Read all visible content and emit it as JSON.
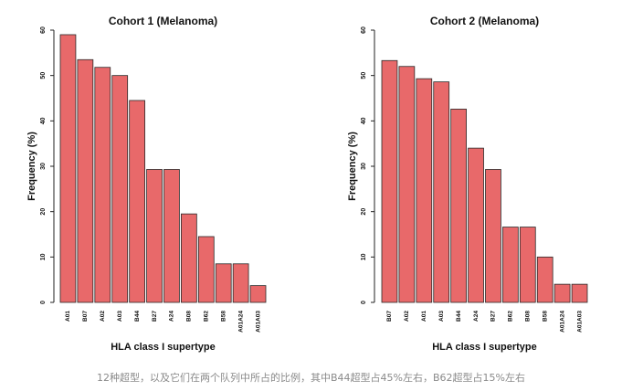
{
  "chart_data": [
    {
      "type": "bar",
      "title": "Cohort 1 (Melanoma)",
      "xlabel": "HLA class I supertype",
      "ylabel": "Frequency (%)",
      "ylim": [
        0,
        60
      ],
      "yticks": [
        0,
        10,
        20,
        30,
        40,
        50,
        60
      ],
      "categories": [
        "A01",
        "B07",
        "A02",
        "A03",
        "B44",
        "B27",
        "A24",
        "B08",
        "B62",
        "B58",
        "A01A24",
        "A01A03"
      ],
      "values": [
        59,
        53.5,
        51.8,
        50,
        44.5,
        29.3,
        29.3,
        19.5,
        14.5,
        8.5,
        8.5,
        3.7
      ],
      "bar_color": "#e8696a",
      "grid": false
    },
    {
      "type": "bar",
      "title": "Cohort 2 (Melanoma)",
      "xlabel": "HLA class I supertype",
      "ylabel": "Frequency (%)",
      "ylim": [
        0,
        60
      ],
      "yticks": [
        0,
        10,
        20,
        30,
        40,
        50,
        60
      ],
      "categories": [
        "B07",
        "A02",
        "A01",
        "A03",
        "B44",
        "A24",
        "B27",
        "B62",
        "B08",
        "B58",
        "A01A24",
        "A01A03"
      ],
      "values": [
        53.3,
        52,
        49.3,
        48.6,
        42.6,
        34,
        29.3,
        16.6,
        16.6,
        10,
        4,
        4
      ],
      "bar_color": "#e8696a",
      "grid": false
    }
  ],
  "caption": "12种超型，以及它们在两个队列中所占的比例，其中B44超型占45%左右，B62超型占15%左右"
}
